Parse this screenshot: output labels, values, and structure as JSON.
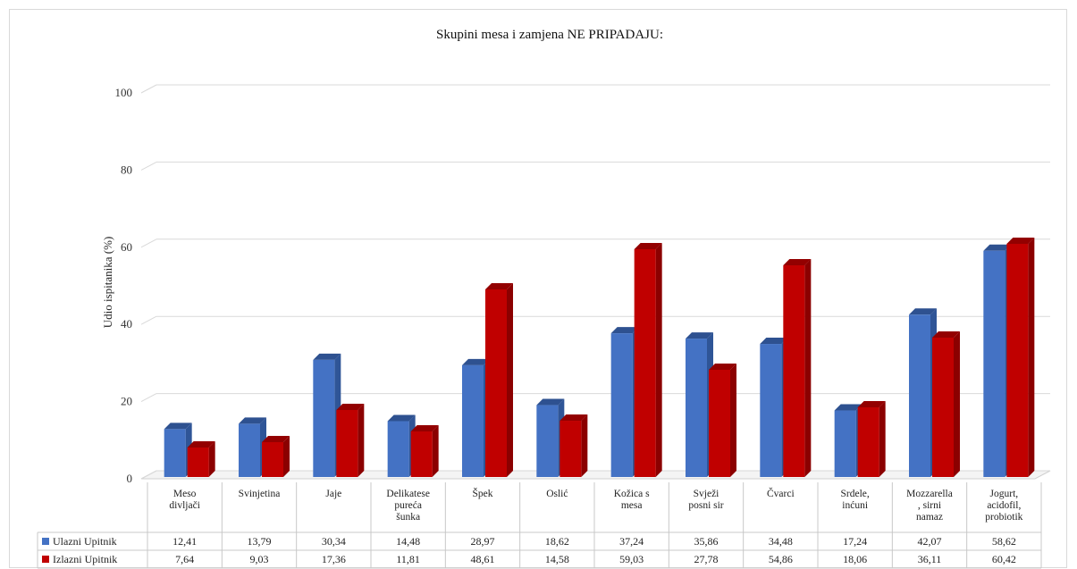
{
  "chart_data": {
    "type": "bar",
    "title": "Skupini  mesa  i zamjena  NE PRIPADAJU:",
    "ylabel": "Udio ispitanika (%)",
    "xlabel": "",
    "ylim": [
      0,
      100
    ],
    "yticks": [
      "0",
      "20",
      "40",
      "60",
      "80",
      "100"
    ],
    "ytick_values": [
      0,
      20,
      40,
      60,
      80,
      100
    ],
    "grid": true,
    "style": "3d-clustered-column-with-data-table",
    "legend_placement": "data-table-left",
    "categories": [
      [
        "Meso",
        "divljači"
      ],
      [
        "Svinjetina"
      ],
      [
        "Jaje"
      ],
      [
        "Delikatese",
        "pureća",
        "šunka"
      ],
      [
        "Špek"
      ],
      [
        "Oslić"
      ],
      [
        "Kožica s",
        "mesa"
      ],
      [
        "Svježi",
        "posni sir"
      ],
      [
        "Čvarci"
      ],
      [
        "Srdele,",
        "inćuni"
      ],
      [
        "Mozzarella",
        ", sirni",
        "namaz"
      ],
      [
        "Jogurt,",
        "acidofil,",
        "probiotik"
      ]
    ],
    "series": [
      {
        "name": "Ulazni Upitnik",
        "color": "#4472c4",
        "side_color": "#2f5597",
        "top_color": "#2e5190",
        "values": [
          12.41,
          13.79,
          30.34,
          14.48,
          28.97,
          18.62,
          37.24,
          35.86,
          34.48,
          17.24,
          42.07,
          58.62
        ],
        "labels": [
          "12,41",
          "13,79",
          "30,34",
          "14,48",
          "28,97",
          "18,62",
          "37,24",
          "35,86",
          "34,48",
          "17,24",
          "42,07",
          "58,62"
        ]
      },
      {
        "name": "Izlazni Upitnik",
        "color": "#c00000",
        "side_color": "#8b0000",
        "top_color": "#930000",
        "values": [
          7.64,
          9.03,
          17.36,
          11.81,
          48.61,
          14.58,
          59.03,
          27.78,
          54.86,
          18.06,
          36.11,
          60.42
        ],
        "labels": [
          "7,64",
          "9,03",
          "17,36",
          "11,81",
          "48,61",
          "14,58",
          "59,03",
          "27,78",
          "54,86",
          "18,06",
          "36,11",
          "60,42"
        ]
      }
    ]
  }
}
